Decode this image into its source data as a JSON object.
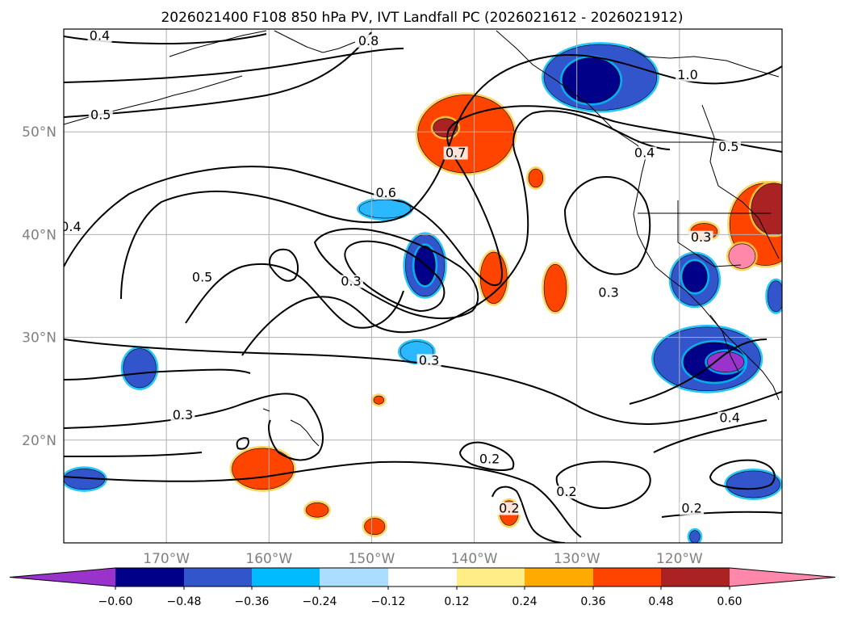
{
  "title": "2026021400 F108 850 hPa PV, IVT Landfall PC (2026021612 - 2026021912)",
  "map": {
    "lon_range": [
      -180,
      -110
    ],
    "lat_range": [
      10,
      60
    ],
    "lat_labels": [
      "20°N",
      "30°N",
      "40°N",
      "50°N"
    ],
    "lon_labels": [
      "170°W",
      "160°W",
      "150°W",
      "140°W",
      "130°W",
      "120°W"
    ],
    "grid": true
  },
  "contour_labels": [
    {
      "text": "0.4",
      "lon": -176.5,
      "lat": 59.1
    },
    {
      "text": "0.8",
      "lon": -150.3,
      "lat": 58.6
    },
    {
      "text": "1.0",
      "lon": -119.2,
      "lat": 55.3
    },
    {
      "text": "0.5",
      "lon": -176.4,
      "lat": 51.4
    },
    {
      "text": "0.7",
      "lon": -141.8,
      "lat": 47.7
    },
    {
      "text": "0.4",
      "lon": -123.4,
      "lat": 47.7
    },
    {
      "text": "0.5",
      "lon": -115.2,
      "lat": 48.3
    },
    {
      "text": "0.6",
      "lon": -148.6,
      "lat": 43.8
    },
    {
      "text": "0.4",
      "lon": -179.3,
      "lat": 40.5
    },
    {
      "text": "0.3",
      "lon": -117.9,
      "lat": 39.5
    },
    {
      "text": "0.5",
      "lon": -166.5,
      "lat": 35.6
    },
    {
      "text": "0.3",
      "lon": -152.0,
      "lat": 35.2
    },
    {
      "text": "0.3",
      "lon": -126.9,
      "lat": 34.1
    },
    {
      "text": "0.3",
      "lon": -144.4,
      "lat": 27.5
    },
    {
      "text": "0.3",
      "lon": -168.4,
      "lat": 22.2
    },
    {
      "text": "0.2",
      "lon": -138.5,
      "lat": 17.9
    },
    {
      "text": "0.4",
      "lon": -115.1,
      "lat": 21.9
    },
    {
      "text": "0.2",
      "lon": -131.0,
      "lat": 14.7
    },
    {
      "text": "0.2",
      "lon": -136.6,
      "lat": 13.1
    },
    {
      "text": "0.2",
      "lon": -118.8,
      "lat": 13.1
    }
  ],
  "shaded_regions": [
    {
      "color": "#3355cc",
      "lon": -127.7,
      "lat": 55.3,
      "rx": 5.5,
      "ry": 3.2
    },
    {
      "color": "#000088",
      "lon": -128.6,
      "lat": 55.0,
      "rx": 2.8,
      "ry": 2.2
    },
    {
      "color": "#ff4400",
      "lon": -140.8,
      "lat": 49.8,
      "rx": 4.7,
      "ry": 3.8
    },
    {
      "color": "#aa2222",
      "lon": -142.8,
      "lat": 50.4,
      "rx": 1.2,
      "ry": 0.9
    },
    {
      "color": "#2bb8ff",
      "lon": -148.7,
      "lat": 42.5,
      "rx": 2.5,
      "ry": 0.9
    },
    {
      "color": "#3355cc",
      "lon": -144.8,
      "lat": 37.0,
      "rx": 1.9,
      "ry": 3.0
    },
    {
      "color": "#000088",
      "lon": -144.8,
      "lat": 37.0,
      "rx": 1.0,
      "ry": 1.9
    },
    {
      "color": "#ff4400",
      "lon": -138.1,
      "lat": 35.8,
      "rx": 1.3,
      "ry": 2.5
    },
    {
      "color": "#ff4400",
      "lon": -132.1,
      "lat": 34.8,
      "rx": 1.1,
      "ry": 2.3
    },
    {
      "color": "#ff4400",
      "lon": -134.0,
      "lat": 45.5,
      "rx": 0.7,
      "ry": 0.9
    },
    {
      "color": "#ff4400",
      "lon": -117.6,
      "lat": 40.3,
      "rx": 1.3,
      "ry": 0.8
    },
    {
      "color": "#3355cc",
      "lon": -118.5,
      "lat": 35.6,
      "rx": 2.3,
      "ry": 2.5
    },
    {
      "color": "#000088",
      "lon": -118.5,
      "lat": 35.9,
      "rx": 1.2,
      "ry": 1.5
    },
    {
      "color": "#3355cc",
      "lon": -117.3,
      "lat": 27.9,
      "rx": 5.2,
      "ry": 3.1
    },
    {
      "color": "#000088",
      "lon": -116.6,
      "lat": 27.6,
      "rx": 3.0,
      "ry": 1.9
    },
    {
      "color": "#9933cc",
      "lon": -115.5,
      "lat": 27.6,
      "rx": 1.8,
      "ry": 1.0
    },
    {
      "color": "#ff4400",
      "lon": -111.6,
      "lat": 41.0,
      "rx": 3.5,
      "ry": 4.0
    },
    {
      "color": "#aa2222",
      "lon": -110.8,
      "lat": 42.5,
      "rx": 2.2,
      "ry": 2.5
    },
    {
      "color": "#ff88aa",
      "lon": -113.9,
      "lat": 37.9,
      "rx": 1.3,
      "ry": 1.2
    },
    {
      "color": "#3355cc",
      "lon": -112.8,
      "lat": 15.7,
      "rx": 2.6,
      "ry": 1.3
    },
    {
      "color": "#3355cc",
      "lon": -172.6,
      "lat": 27.0,
      "rx": 1.6,
      "ry": 1.9
    },
    {
      "color": "#2bb8ff",
      "lon": -145.6,
      "lat": 28.6,
      "rx": 1.6,
      "ry": 1.0
    },
    {
      "color": "#ff4400",
      "lon": -160.6,
      "lat": 17.2,
      "rx": 3.0,
      "ry": 2.0
    },
    {
      "color": "#ff4400",
      "lon": -155.3,
      "lat": 13.2,
      "rx": 1.1,
      "ry": 0.7
    },
    {
      "color": "#ff4400",
      "lon": -149.7,
      "lat": 11.6,
      "rx": 1.0,
      "ry": 0.8
    },
    {
      "color": "#ff4400",
      "lon": -136.6,
      "lat": 12.9,
      "rx": 0.9,
      "ry": 1.2
    },
    {
      "color": "#ff4400",
      "lon": -149.3,
      "lat": 23.9,
      "rx": 0.5,
      "ry": 0.4
    },
    {
      "color": "#3355cc",
      "lon": -178.0,
      "lat": 16.2,
      "rx": 2.0,
      "ry": 1.0
    },
    {
      "color": "#3355cc",
      "lon": -110.6,
      "lat": 34.0,
      "rx": 0.8,
      "ry": 1.5
    },
    {
      "color": "#3355cc",
      "lon": -118.5,
      "lat": 10.6,
      "rx": 0.5,
      "ry": 0.6
    }
  ],
  "colorbar": {
    "colors": [
      "#9933cc",
      "#000088",
      "#3355cc",
      "#00bbff",
      "#aaddff",
      "#ffffff",
      "#ffee88",
      "#ffaa00",
      "#ff4400",
      "#aa2222",
      "#ff88aa"
    ],
    "tick_labels": [
      "−0.60",
      "−0.48",
      "−0.36",
      "−0.24",
      "−0.12",
      "0.12",
      "0.24",
      "0.36",
      "0.48",
      "0.60"
    ]
  }
}
